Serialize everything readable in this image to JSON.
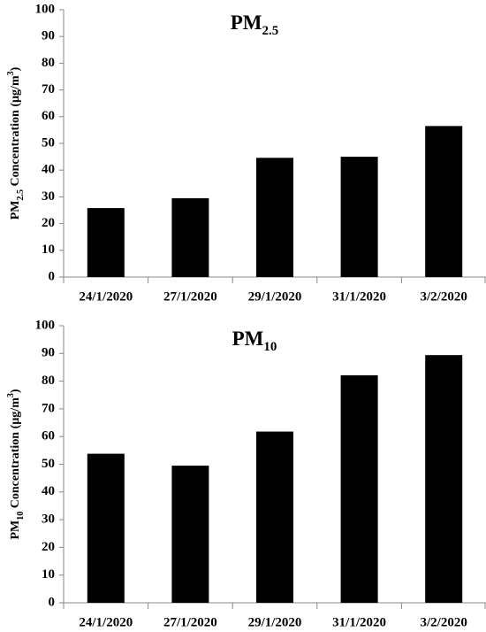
{
  "chart_data": [
    {
      "type": "bar",
      "title": [
        {
          "text": "PM"
        },
        {
          "text": "2.5",
          "sub": true
        }
      ],
      "y_label": [
        {
          "text": "PM"
        },
        {
          "text": "2.5",
          "sub": true
        },
        {
          "text": " Concentration (µg/m"
        },
        {
          "text": "3",
          "sup": true
        },
        {
          "text": ")"
        }
      ],
      "categories": [
        "24/1/2020",
        "27/1/2020",
        "29/1/2020",
        "31/1/2020",
        "3/2/2020"
      ],
      "values": [
        25.8,
        29.5,
        44.6,
        45,
        56.5
      ],
      "color": "#000000",
      "ylim": [
        0,
        100
      ],
      "yticks": [
        0,
        10,
        20,
        30,
        40,
        50,
        60,
        70,
        80,
        90,
        100
      ],
      "grid": false
    },
    {
      "type": "bar",
      "title": [
        {
          "text": "PM"
        },
        {
          "text": "10",
          "sub": true
        }
      ],
      "y_label": [
        {
          "text": "PM"
        },
        {
          "text": "10",
          "sub": true
        },
        {
          "text": " Concentration (µg/m"
        },
        {
          "text": "3",
          "sup": true
        },
        {
          "text": ")"
        }
      ],
      "categories": [
        "24/1/2020",
        "27/1/2020",
        "29/1/2020",
        "31/1/2020",
        "3/2/2020"
      ],
      "values": [
        53.8,
        49.5,
        61.8,
        82.1,
        89.4
      ],
      "color": "#000000",
      "ylim": [
        0,
        100
      ],
      "yticks": [
        0,
        10,
        20,
        30,
        40,
        50,
        60,
        70,
        80,
        90,
        100
      ],
      "grid": false
    }
  ]
}
